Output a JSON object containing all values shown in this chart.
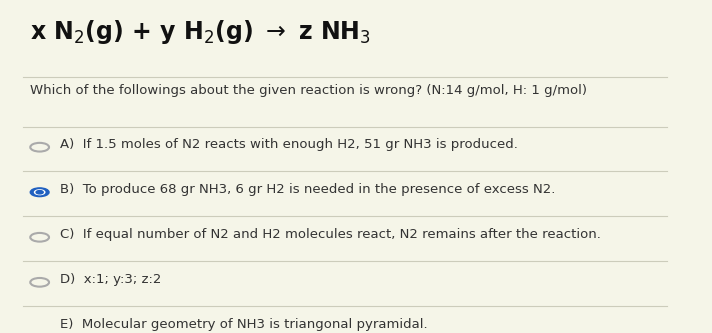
{
  "background_color": "#f5f5e8",
  "title_line": "x N₂(g) + y H₂(g) → z NH₃",
  "question": "Which of the followings about the given reaction is wrong? (N:14 g/mol, H: 1 g/mol)",
  "options": [
    {
      "label": "A)",
      "text": "If 1.5 moles of N2 reacts with enough H2, 51 gr NH3 is produced.",
      "selected": false
    },
    {
      "label": "B)",
      "text": "To produce 68 gr NH3, 6 gr H2 is needed in the presence of excess N2.",
      "selected": true
    },
    {
      "label": "C)",
      "text": "If equal number of N2 and H2 molecules react, N2 remains after the reaction.",
      "selected": false
    },
    {
      "label": "D)",
      "text": "x:1; y:3; z:2",
      "selected": false
    },
    {
      "label": "E)",
      "text": "Molecular geometry of NH3 is triangonal pyramidal.",
      "selected": false
    }
  ],
  "circle_color_empty": "#aaaaaa",
  "circle_color_selected": "#2060c0",
  "separator_color": "#ccccbb",
  "text_color": "#333333",
  "title_color": "#111111",
  "title_fontsize": 17,
  "question_fontsize": 9.5,
  "option_fontsize": 9.5
}
